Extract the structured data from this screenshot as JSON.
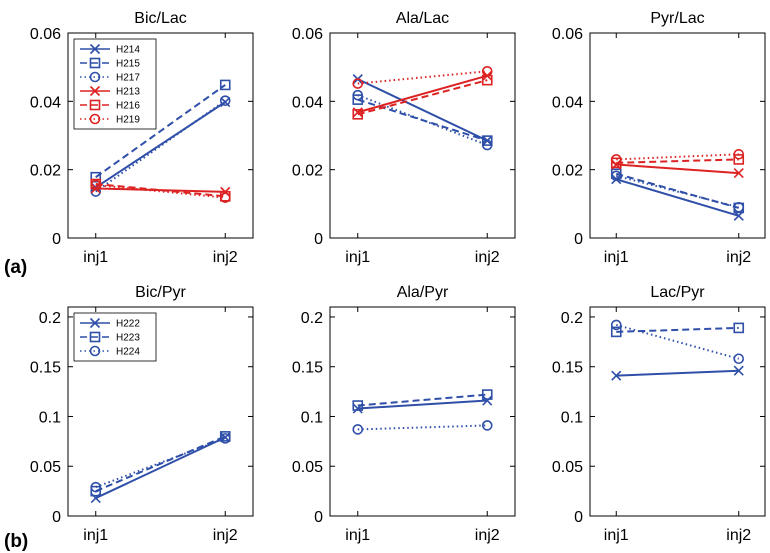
{
  "panel_labels": [
    "(a)",
    "(b)"
  ],
  "colors": {
    "blue": "#2f4fa8",
    "red": "#dd2222"
  },
  "chart_data": [
    {
      "type": "line",
      "title": "Bic/Lac",
      "categories": [
        "inj1",
        "inj2"
      ],
      "ylim": [
        0,
        0.06
      ],
      "yticks": [
        "0",
        "0.02",
        "0.04",
        "0.06"
      ],
      "grid": false,
      "legend": "top-left",
      "series": [
        {
          "name": "H214",
          "color": "blue",
          "dash": "solid",
          "marker": "x",
          "values": [
            0.0148,
            0.0398
          ]
        },
        {
          "name": "H215",
          "color": "blue",
          "dash": "dashed",
          "marker": "square",
          "values": [
            0.0178,
            0.0448
          ]
        },
        {
          "name": "H217",
          "color": "blue",
          "dash": "dotted",
          "marker": "circle",
          "values": [
            0.0136,
            0.0402
          ]
        },
        {
          "name": "H213",
          "color": "red",
          "dash": "solid",
          "marker": "x",
          "values": [
            0.0145,
            0.0135
          ]
        },
        {
          "name": "H216",
          "color": "red",
          "dash": "dashed",
          "marker": "square",
          "values": [
            0.0158,
            0.0122
          ]
        },
        {
          "name": "H219",
          "color": "red",
          "dash": "dotted",
          "marker": "circle",
          "values": [
            0.0155,
            0.0118
          ]
        }
      ]
    },
    {
      "type": "line",
      "title": "Ala/Lac",
      "categories": [
        "inj1",
        "inj2"
      ],
      "ylim": [
        0,
        0.06
      ],
      "yticks": [
        "0",
        "0.02",
        "0.04",
        "0.06"
      ],
      "grid": false,
      "series": [
        {
          "color": "blue",
          "dash": "solid",
          "marker": "x",
          "values": [
            0.0465,
            0.0285
          ]
        },
        {
          "color": "blue",
          "dash": "dashed",
          "marker": "square",
          "values": [
            0.0405,
            0.0285
          ]
        },
        {
          "color": "blue",
          "dash": "dotted",
          "marker": "circle",
          "values": [
            0.0418,
            0.0272
          ]
        },
        {
          "color": "red",
          "dash": "solid",
          "marker": "x",
          "values": [
            0.0368,
            0.0475
          ]
        },
        {
          "color": "red",
          "dash": "dashed",
          "marker": "square",
          "values": [
            0.0362,
            0.0462
          ]
        },
        {
          "color": "red",
          "dash": "dotted",
          "marker": "circle",
          "values": [
            0.0452,
            0.0488
          ]
        }
      ]
    },
    {
      "type": "line",
      "title": "Pyr/Lac",
      "categories": [
        "inj1",
        "inj2"
      ],
      "ylim": [
        0,
        0.06
      ],
      "yticks": [
        "0",
        "0.02",
        "0.04",
        "0.06"
      ],
      "grid": false,
      "series": [
        {
          "color": "blue",
          "dash": "solid",
          "marker": "x",
          "values": [
            0.0172,
            0.0065
          ]
        },
        {
          "color": "blue",
          "dash": "dashed",
          "marker": "square",
          "values": [
            0.0188,
            0.0088
          ]
        },
        {
          "color": "blue",
          "dash": "dotted",
          "marker": "circle",
          "values": [
            0.0182,
            0.009
          ]
        },
        {
          "color": "red",
          "dash": "solid",
          "marker": "x",
          "values": [
            0.0215,
            0.019
          ]
        },
        {
          "color": "red",
          "dash": "dashed",
          "marker": "square",
          "values": [
            0.022,
            0.023
          ]
        },
        {
          "color": "red",
          "dash": "dotted",
          "marker": "circle",
          "values": [
            0.023,
            0.0245
          ]
        }
      ]
    },
    {
      "type": "line",
      "title": "Bic/Pyr",
      "categories": [
        "inj1",
        "inj2"
      ],
      "ylim": [
        0,
        0.21
      ],
      "yticks": [
        "0",
        "0.05",
        "0.1",
        "0.15",
        "0.2"
      ],
      "grid": false,
      "legend": "top-left",
      "series": [
        {
          "name": "H222",
          "color": "blue",
          "dash": "solid",
          "marker": "x",
          "values": [
            0.018,
            0.079
          ]
        },
        {
          "name": "H223",
          "color": "blue",
          "dash": "dashed",
          "marker": "square",
          "values": [
            0.025,
            0.08
          ]
        },
        {
          "name": "H224",
          "color": "blue",
          "dash": "dotted",
          "marker": "circle",
          "values": [
            0.029,
            0.078
          ]
        }
      ]
    },
    {
      "type": "line",
      "title": "Ala/Pyr",
      "categories": [
        "inj1",
        "inj2"
      ],
      "ylim": [
        0,
        0.21
      ],
      "yticks": [
        "0",
        "0.05",
        "0.1",
        "0.15",
        "0.2"
      ],
      "grid": false,
      "series": [
        {
          "color": "blue",
          "dash": "solid",
          "marker": "x",
          "values": [
            0.108,
            0.116
          ]
        },
        {
          "color": "blue",
          "dash": "dashed",
          "marker": "square",
          "values": [
            0.111,
            0.122
          ]
        },
        {
          "color": "blue",
          "dash": "dotted",
          "marker": "circle",
          "values": [
            0.087,
            0.091
          ]
        }
      ]
    },
    {
      "type": "line",
      "title": "Lac/Pyr",
      "categories": [
        "inj1",
        "inj2"
      ],
      "ylim": [
        0,
        0.21
      ],
      "yticks": [
        "0",
        "0.05",
        "0.1",
        "0.15",
        "0.2"
      ],
      "grid": false,
      "series": [
        {
          "color": "blue",
          "dash": "solid",
          "marker": "x",
          "values": [
            0.141,
            0.146
          ]
        },
        {
          "color": "blue",
          "dash": "dashed",
          "marker": "square",
          "values": [
            0.185,
            0.189
          ]
        },
        {
          "color": "blue",
          "dash": "dotted",
          "marker": "circle",
          "values": [
            0.192,
            0.158
          ]
        }
      ]
    }
  ]
}
